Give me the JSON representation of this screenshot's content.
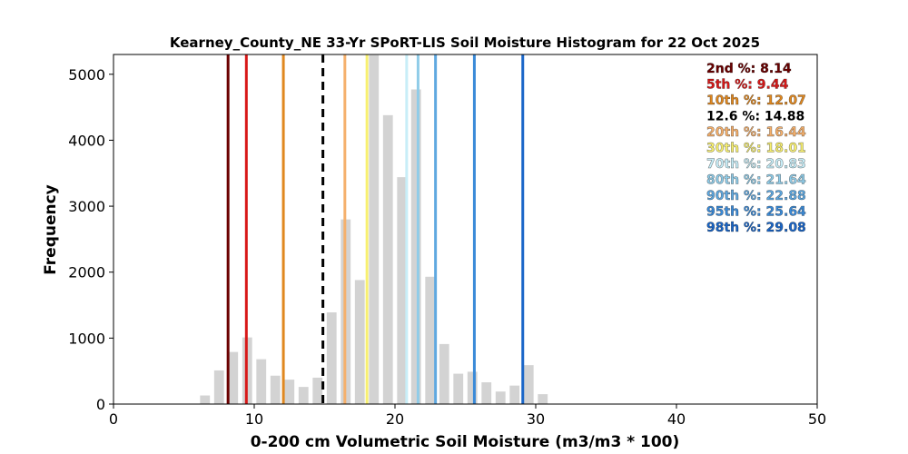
{
  "chart_data": {
    "type": "bar",
    "title": "Kearney_County_NE 33-Yr SPoRT-LIS Soil Moisture Histogram for 22 Oct 2025",
    "xlabel": "0-200 cm Volumetric Soil Moisture (m3/m3 * 100)",
    "ylabel": "Frequency",
    "xlim": [
      0,
      50
    ],
    "ylim": [
      0,
      5300
    ],
    "xticks": [
      0,
      10,
      20,
      30,
      40,
      50
    ],
    "yticks": [
      0,
      1000,
      2000,
      3000,
      4000,
      5000
    ],
    "bin_width": 1.0,
    "bar_color": "#d3d3d3",
    "bins": [
      {
        "x": 6.5,
        "count": 130
      },
      {
        "x": 7.5,
        "count": 510
      },
      {
        "x": 8.5,
        "count": 790
      },
      {
        "x": 9.5,
        "count": 1010
      },
      {
        "x": 10.5,
        "count": 680
      },
      {
        "x": 11.5,
        "count": 430
      },
      {
        "x": 12.5,
        "count": 370
      },
      {
        "x": 13.5,
        "count": 260
      },
      {
        "x": 14.5,
        "count": 400
      },
      {
        "x": 15.5,
        "count": 1390
      },
      {
        "x": 16.5,
        "count": 2800
      },
      {
        "x": 17.5,
        "count": 1880
      },
      {
        "x": 18.5,
        "count": 5290
      },
      {
        "x": 19.5,
        "count": 4380
      },
      {
        "x": 20.5,
        "count": 3440
      },
      {
        "x": 21.5,
        "count": 4770
      },
      {
        "x": 22.5,
        "count": 1930
      },
      {
        "x": 23.5,
        "count": 910
      },
      {
        "x": 24.5,
        "count": 460
      },
      {
        "x": 25.5,
        "count": 490
      },
      {
        "x": 26.5,
        "count": 330
      },
      {
        "x": 27.5,
        "count": 190
      },
      {
        "x": 28.5,
        "count": 280
      },
      {
        "x": 29.5,
        "count": 590
      },
      {
        "x": 30.5,
        "count": 150
      }
    ],
    "percentile_lines": [
      {
        "label": "2nd %: 8.14",
        "value": 8.14,
        "color": "#6b0000",
        "style": "solid"
      },
      {
        "label": "5th %: 9.44",
        "value": 9.44,
        "color": "#d81818",
        "style": "solid"
      },
      {
        "label": "10th %: 12.07",
        "value": 12.07,
        "color": "#e08820",
        "style": "solid"
      },
      {
        "label": "12.6 %: 14.88",
        "value": 14.88,
        "color": "#000000",
        "style": "dashed"
      },
      {
        "label": "20th %: 16.44",
        "value": 16.44,
        "color": "#f5b06c",
        "style": "solid"
      },
      {
        "label": "30th %: 18.01",
        "value": 18.01,
        "color": "#f8f070",
        "style": "solid"
      },
      {
        "label": "70th %: 20.83",
        "value": 20.83,
        "color": "#c8eef8",
        "style": "solid"
      },
      {
        "label": "80th %: 21.64",
        "value": 21.64,
        "color": "#90cce8",
        "style": "solid"
      },
      {
        "label": "90th %: 22.88",
        "value": 22.88,
        "color": "#5fa8e0",
        "style": "solid"
      },
      {
        "label": "95th %: 25.64",
        "value": 25.64,
        "color": "#3a8ad8",
        "style": "solid"
      },
      {
        "label": "98th %: 29.08",
        "value": 29.08,
        "color": "#1a66c8",
        "style": "solid"
      }
    ],
    "legend_position": "top-right",
    "grid": false
  }
}
